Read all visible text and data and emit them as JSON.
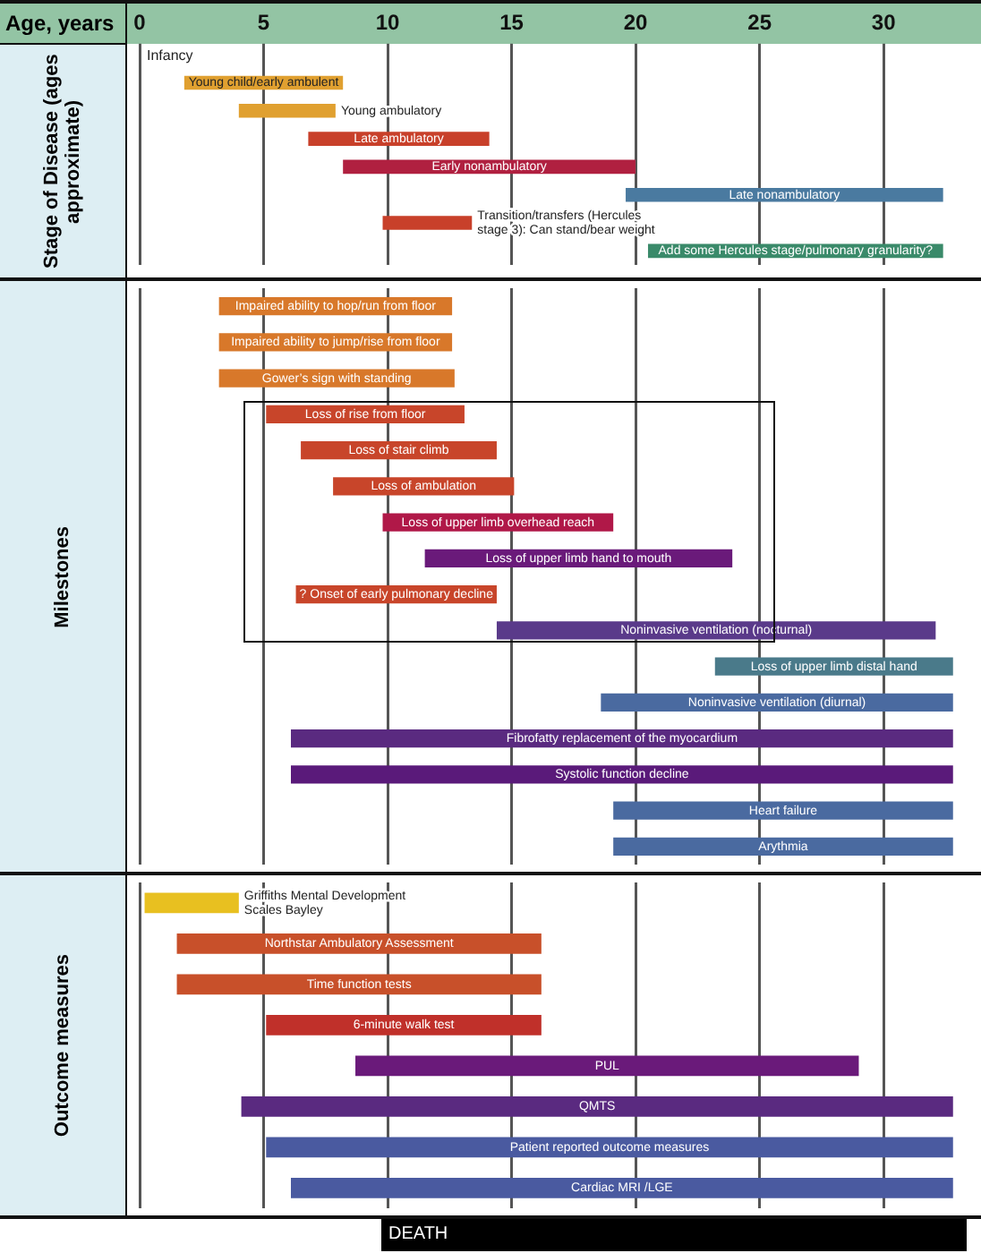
{
  "chart_data": [
    {
      "type": "bar",
      "orientation": "horizontal",
      "xlabel": "Age, years",
      "ylabel": "Stage of Disease (ages approximate)",
      "annotations": [
        "Infancy"
      ],
      "xlim": [
        0,
        34
      ],
      "xticks": [
        0,
        5,
        10,
        15,
        20,
        25,
        30
      ],
      "grid": "x",
      "tick_labels": "x",
      "categories": [
        "Young child/early ambulent",
        "Young ambulatory",
        "Late ambulatory",
        "Early nonambulatory",
        "Late nonambulatory",
        "Transition/transfers (Hercules stage 3): Can stand/bear weight",
        "Add some Hercules stage/pulmonary granularity?"
      ],
      "base": [
        1.8,
        4,
        6.8,
        8.2,
        19.6,
        9.8,
        20.5
      ],
      "values": [
        6.4,
        3.9,
        7.3,
        11.8,
        12.8,
        3.6,
        11.9
      ],
      "colors": [
        "#e0a030",
        "#e0a030",
        "#c8402a",
        "#b02040",
        "#4a7aa0",
        "#c8402a",
        "#3a8a6a"
      ]
    },
    {
      "type": "bar",
      "orientation": "horizontal",
      "ylabel": "Milestones",
      "xlim": [
        0,
        34
      ],
      "xticks": [
        0,
        5,
        10,
        15,
        20,
        25,
        30
      ],
      "grid": "x",
      "tick_labels": false,
      "categories": [
        "Impaired ability to hop/run from floor",
        "Impaired ability to jump/rise from floor",
        "Gower’s sign with standing",
        "Loss of rise from floor",
        "Loss of stair climb",
        "Loss of ambulation",
        "Loss of upper limb overhead reach",
        "Loss of upper limb hand to mouth",
        "? Onset of early pulmonary decline",
        "Noninvasive ventilation (nocturnal)",
        "Loss of upper limb distal hand",
        "Noninvasive ventilation (diurnal)",
        "Fibrofatty replacement of the myocardium",
        "Systolic function decline",
        "Heart failure",
        "Arythmia"
      ],
      "base": [
        3.2,
        3.2,
        3.2,
        5.1,
        6.5,
        7.8,
        9.8,
        11.5,
        6.3,
        14.4,
        23.2,
        18.6,
        6.1,
        6.1,
        19.1,
        19.1
      ],
      "values": [
        9.4,
        9.4,
        9.5,
        8,
        7.9,
        7.3,
        9.3,
        12.4,
        8.1,
        17.7,
        9.6,
        14.2,
        26.7,
        26.7,
        13.7,
        13.7
      ],
      "colors": [
        "#d8782a",
        "#d8782a",
        "#d8782a",
        "#c8452a",
        "#c8452a",
        "#c8452a",
        "#b01848",
        "#6a1a7a",
        "#c8452a",
        "#5a3a8a",
        "#4a7a8a",
        "#4a6aa0",
        "#5a2a80",
        "#5a1a7a",
        "#4a6aa0",
        "#4a6aa0"
      ]
    },
    {
      "type": "bar",
      "orientation": "horizontal",
      "ylabel": "Outcome measures",
      "annotations": [
        "DEATH"
      ],
      "xlim": [
        0,
        34
      ],
      "xticks": [
        0,
        5,
        10,
        15,
        20,
        25,
        30
      ],
      "grid": "x",
      "tick_labels": false,
      "categories": [
        "Griffiths Mental Development Scales Bayley",
        "Northstar Ambulatory Assessment",
        "Time function tests",
        "6-minute walk test",
        "PUL",
        "QMTS",
        "Patient reported outcome measures",
        "Cardiac MRI /LGE"
      ],
      "base": [
        0.2,
        1.5,
        1.5,
        5.1,
        8.7,
        4.1,
        5.1,
        6.1
      ],
      "values": [
        3.8,
        14.7,
        14.7,
        11.1,
        20.3,
        28.7,
        27.7,
        26.7
      ],
      "colors": [
        "#e8c020",
        "#c8502a",
        "#c8502a",
        "#c0302a",
        "#6a1a7a",
        "#5a2a80",
        "#4a5aa0",
        "#4a5aa0"
      ]
    }
  ]
}
